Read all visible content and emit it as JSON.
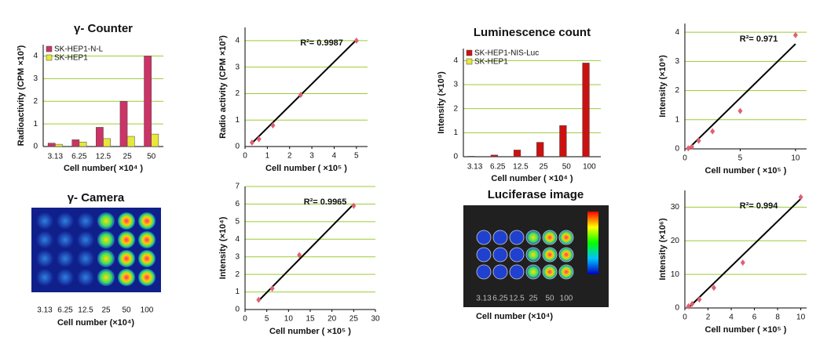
{
  "chart_data": [
    {
      "type": "bar",
      "title": "γ- Counter",
      "ylabel": "Radioactivity (CPM ×10³)",
      "xlabel": "Cell number( ×10⁴ )",
      "categories": [
        "3.13",
        "6.25",
        "12.5",
        "25",
        "50"
      ],
      "series": [
        {
          "name": "SK-HEP1-N-L",
          "color": "#cc3366",
          "values": [
            0.15,
            0.3,
            0.85,
            2.0,
            4.0
          ]
        },
        {
          "name": "SK-HEP1",
          "color": "#e8e83a",
          "values": [
            0.1,
            0.2,
            0.35,
            0.45,
            0.55
          ]
        }
      ],
      "ylim": [
        0,
        4.5
      ],
      "yticks": [
        0,
        1,
        2,
        3,
        4
      ],
      "grid": true,
      "legend": "upper left"
    },
    {
      "type": "scatter",
      "ylabel": "Radio activity (CPM ×10³)",
      "xlabel": "Cell number ( ×10⁵ )",
      "annotation": "R²= 0.9987",
      "x": [
        0.3125,
        0.625,
        1.25,
        2.5,
        5
      ],
      "values": [
        0.15,
        0.28,
        0.8,
        1.95,
        4.0
      ],
      "color": "#e06070",
      "trendline": {
        "x": [
          0.3,
          5
        ],
        "y": [
          0.12,
          4.03
        ]
      },
      "xlim": [
        0,
        5.5
      ],
      "xticks": [
        0,
        1,
        2,
        3,
        4,
        5
      ],
      "ylim": [
        0,
        4.5
      ],
      "yticks": [
        0,
        1,
        2,
        3,
        4
      ],
      "grid": true
    },
    {
      "type": "bar",
      "title": "Luminescence count",
      "ylabel": "Intensity (×10⁹)",
      "xlabel": "Cell number ( ×10⁴ )",
      "categories": [
        "3.13",
        "6.25",
        "12.5",
        "25",
        "50",
        "100"
      ],
      "series": [
        {
          "name": "SK-HEP1-NIS-Luc",
          "color": "#cc1111",
          "values": [
            0.02,
            0.07,
            0.28,
            0.6,
            1.3,
            3.9
          ]
        },
        {
          "name": "SK-HEP1",
          "color": "#e8e83a",
          "values": [
            0,
            0,
            0,
            0,
            0,
            0
          ]
        }
      ],
      "ylim": [
        0,
        4.5
      ],
      "yticks": [
        0,
        1,
        2,
        3,
        4
      ],
      "grid": true,
      "legend": "upper left"
    },
    {
      "type": "scatter",
      "ylabel": "Intensity (×10⁹)",
      "xlabel": "Cell number ( ×10⁵ )",
      "annotation": "R²= 0.971",
      "x": [
        0.3125,
        0.625,
        1.25,
        2.5,
        5,
        10
      ],
      "values": [
        0.02,
        0.07,
        0.28,
        0.6,
        1.3,
        3.9
      ],
      "color": "#e06070",
      "trendline": {
        "x": [
          0.3,
          10
        ],
        "y": [
          0,
          3.6
        ]
      },
      "xlim": [
        0,
        11
      ],
      "xticks": [
        0,
        5,
        10
      ],
      "ylim": [
        0,
        4.3
      ],
      "yticks": [
        0,
        1,
        2,
        3,
        4
      ],
      "grid": true
    },
    {
      "type": "scatter",
      "ylabel": "Intensity (×10⁴)",
      "xlabel": "Cell number ( ×10⁵ )",
      "annotation": "R²= 0.9965",
      "x": [
        3.13,
        6.25,
        12.5,
        25
      ],
      "values": [
        0.55,
        1.2,
        3.1,
        5.9
      ],
      "color": "#e06070",
      "trendline": {
        "x": [
          3.13,
          25
        ],
        "y": [
          0.5,
          6.0
        ]
      },
      "xlim": [
        0,
        30
      ],
      "xticks": [
        0,
        5,
        10,
        15,
        20,
        25,
        30
      ],
      "ylim": [
        0,
        7
      ],
      "yticks": [
        0,
        1,
        2,
        3,
        4,
        5,
        6,
        7
      ],
      "grid": true
    },
    {
      "type": "scatter",
      "ylabel": "Intensity (×10⁶)",
      "xlabel": "Cell number ( ×10⁵ )",
      "annotation": "R²= 0.994",
      "x": [
        0.3125,
        0.625,
        1.25,
        2.5,
        5,
        10
      ],
      "values": [
        0.5,
        1.2,
        2.5,
        6,
        13.5,
        33
      ],
      "color": "#e06070",
      "trendline": {
        "x": [
          0.3,
          10
        ],
        "y": [
          0,
          32.5
        ]
      },
      "xlim": [
        0,
        10.5
      ],
      "xticks": [
        0,
        2,
        4,
        6,
        8,
        10
      ],
      "ylim": [
        0,
        35
      ],
      "yticks": [
        0,
        10,
        20,
        30
      ],
      "grid": true
    }
  ],
  "images": [
    {
      "title": "γ- Camera",
      "labels": [
        "3.13",
        "6.25",
        "12.5",
        "25",
        "50",
        "100"
      ],
      "xlabel": "Cell number (×10⁴)"
    },
    {
      "title": "Luciferase image",
      "labels": [
        "3.13",
        "6.25",
        "12.5",
        "25",
        "50",
        "100"
      ],
      "xlabel": "Cell number (×10⁴)"
    }
  ]
}
